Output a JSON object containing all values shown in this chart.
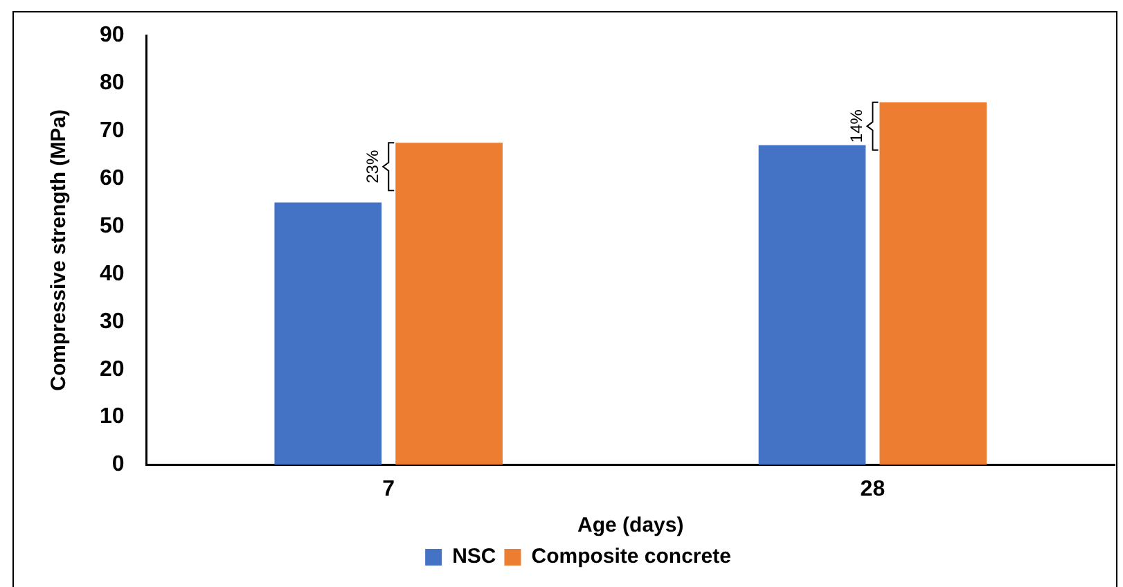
{
  "chart_data": {
    "type": "bar",
    "xlabel": "Age (days)",
    "ylabel": "Compressive strength (MPa)",
    "categories": [
      "7",
      "28"
    ],
    "series": [
      {
        "name": "NSC",
        "color": "#4472c4",
        "values": [
          55,
          67
        ]
      },
      {
        "name": "Composite concrete",
        "color": "#ed7d31",
        "values": [
          67.5,
          76
        ]
      }
    ],
    "ylim": [
      0,
      90
    ],
    "yticks": [
      0,
      10,
      20,
      30,
      40,
      50,
      60,
      70,
      80,
      90
    ],
    "grid": false,
    "legend": "bottom",
    "annotations": [
      "23%",
      "14%"
    ]
  }
}
